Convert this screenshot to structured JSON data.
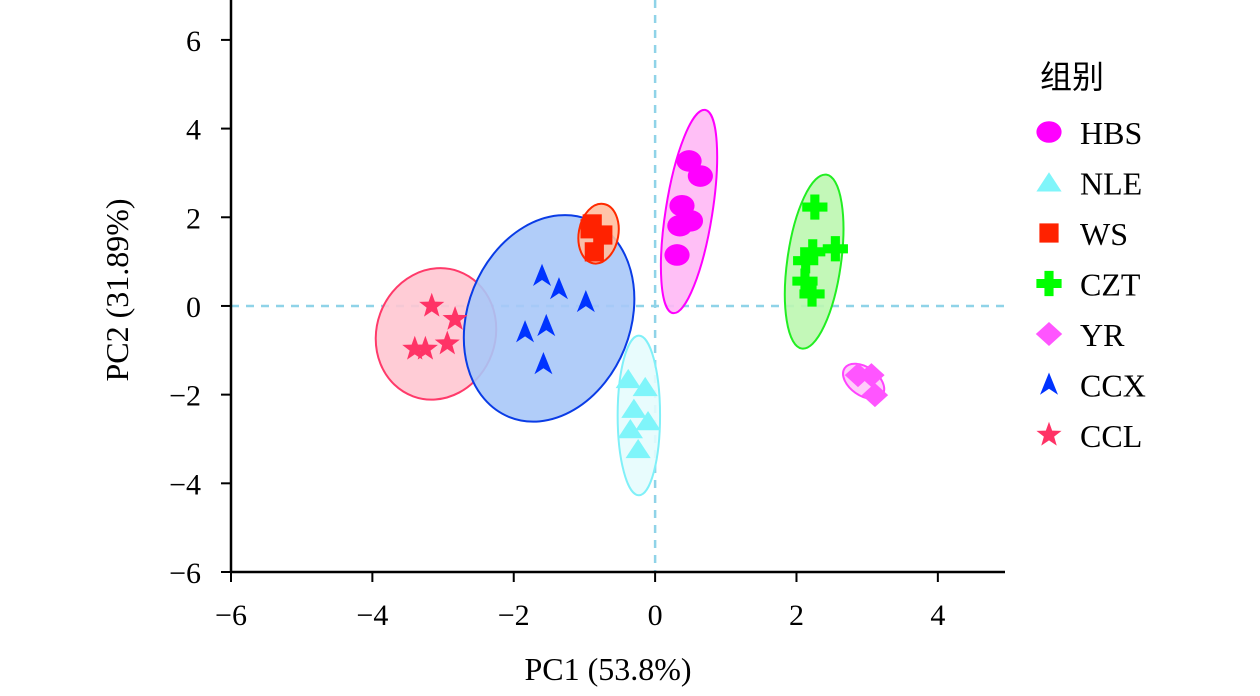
{
  "chart_data": {
    "type": "scatter",
    "title": "",
    "xlabel": "PC1 (53.8%)",
    "ylabel": "PC2 (31.89%)",
    "xlim": [
      -6,
      4.95
    ],
    "ylim": [
      -6,
      6.9
    ],
    "xticks": [
      -6,
      -4,
      -2,
      0,
      2,
      4
    ],
    "yticks": [
      -6,
      -4,
      -2,
      0,
      2,
      4,
      6
    ],
    "xtick_labels": [
      "−6",
      "−4",
      "−2",
      "0",
      "2",
      "4"
    ],
    "ytick_labels": [
      "−6",
      "−4",
      "−2",
      "0",
      "2",
      "4",
      "6"
    ],
    "grid": false,
    "reference_lines": {
      "x": 0,
      "y": 0,
      "style": "dashed",
      "color": "#8fd3e8"
    },
    "legend": {
      "title": "组别",
      "placement": "right"
    },
    "series": [
      {
        "name": "HBS",
        "marker": "circle",
        "color": "#ff00ff",
        "fill": "#ffb8f5",
        "stroke": "#ff00ff",
        "points": [
          [
            0.48,
            3.27
          ],
          [
            0.64,
            2.93
          ],
          [
            0.38,
            2.26
          ],
          [
            0.5,
            1.92
          ],
          [
            0.35,
            1.81
          ],
          [
            0.31,
            1.15
          ]
        ],
        "ellipse": {
          "cx": 0.48,
          "cy": 2.13,
          "rx": 0.33,
          "ry": 2.32,
          "angle_deg": 9
        }
      },
      {
        "name": "NLE",
        "marker": "triangle",
        "color": "#7ff5fa",
        "fill": "#e6fcfd",
        "stroke": "#80f0f8",
        "points": [
          [
            -0.38,
            -1.65
          ],
          [
            -0.14,
            -1.83
          ],
          [
            -0.3,
            -2.32
          ],
          [
            -0.1,
            -2.6
          ],
          [
            -0.35,
            -2.78
          ],
          [
            -0.24,
            -3.23
          ]
        ],
        "ellipse": {
          "cx": -0.23,
          "cy": -2.47,
          "rx": 0.3,
          "ry": 1.8,
          "angle_deg": 0
        }
      },
      {
        "name": "WS",
        "marker": "square",
        "color": "#ff2200",
        "fill": "#ffbfa0",
        "stroke": "#ff2a00",
        "points": [
          [
            -0.89,
            1.85
          ],
          [
            -0.74,
            1.6
          ],
          [
            -0.92,
            1.74
          ],
          [
            -0.86,
            1.22
          ]
        ],
        "ellipse": {
          "cx": -0.8,
          "cy": 1.63,
          "rx": 0.28,
          "ry": 0.68,
          "angle_deg": 10
        }
      },
      {
        "name": "CZT",
        "marker": "plus",
        "color": "#00ff00",
        "fill": "#bdf7b0",
        "stroke": "#22ee22",
        "points": [
          [
            2.26,
            2.23
          ],
          [
            2.55,
            1.29
          ],
          [
            2.23,
            1.22
          ],
          [
            2.13,
            1.02
          ],
          [
            2.12,
            0.56
          ],
          [
            2.22,
            0.27
          ]
        ],
        "ellipse": {
          "cx": 2.25,
          "cy": 1.0,
          "rx": 0.38,
          "ry": 1.98,
          "angle_deg": 8
        }
      },
      {
        "name": "YR",
        "marker": "diamond",
        "color": "#ff55ff",
        "fill": "#ffc6fa",
        "stroke": "#ff44ff",
        "points": [
          [
            2.87,
            -1.56
          ],
          [
            3.06,
            -1.56
          ],
          [
            3.11,
            -2.01
          ]
        ],
        "ellipse": {
          "cx": 2.95,
          "cy": -1.7,
          "rx": 0.2,
          "ry": 0.52,
          "angle_deg": -55
        }
      },
      {
        "name": "CCX",
        "marker": "arrowhead",
        "color": "#0033ff",
        "fill": "#a8c8f8",
        "stroke": "#0a3ce6",
        "points": [
          [
            -1.6,
            0.68
          ],
          [
            -1.36,
            0.38
          ],
          [
            -0.98,
            0.09
          ],
          [
            -1.84,
            -0.59
          ],
          [
            -1.54,
            -0.45
          ],
          [
            -1.58,
            -1.31
          ]
        ],
        "ellipse": {
          "cx": -1.5,
          "cy": -0.28,
          "rx": 1.15,
          "ry": 2.4,
          "angle_deg": 22
        }
      },
      {
        "name": "CCL",
        "marker": "star",
        "color": "#ff3366",
        "fill": "#ffc6d2",
        "stroke": "#ff3a6a",
        "points": [
          [
            -3.16,
            0.0
          ],
          [
            -2.83,
            -0.3
          ],
          [
            -2.94,
            -0.85
          ],
          [
            -3.4,
            -0.97
          ],
          [
            -3.25,
            -0.97
          ]
        ],
        "ellipse": {
          "cx": -3.1,
          "cy": -0.63,
          "rx": 0.84,
          "ry": 1.5,
          "angle_deg": 20
        }
      }
    ]
  }
}
